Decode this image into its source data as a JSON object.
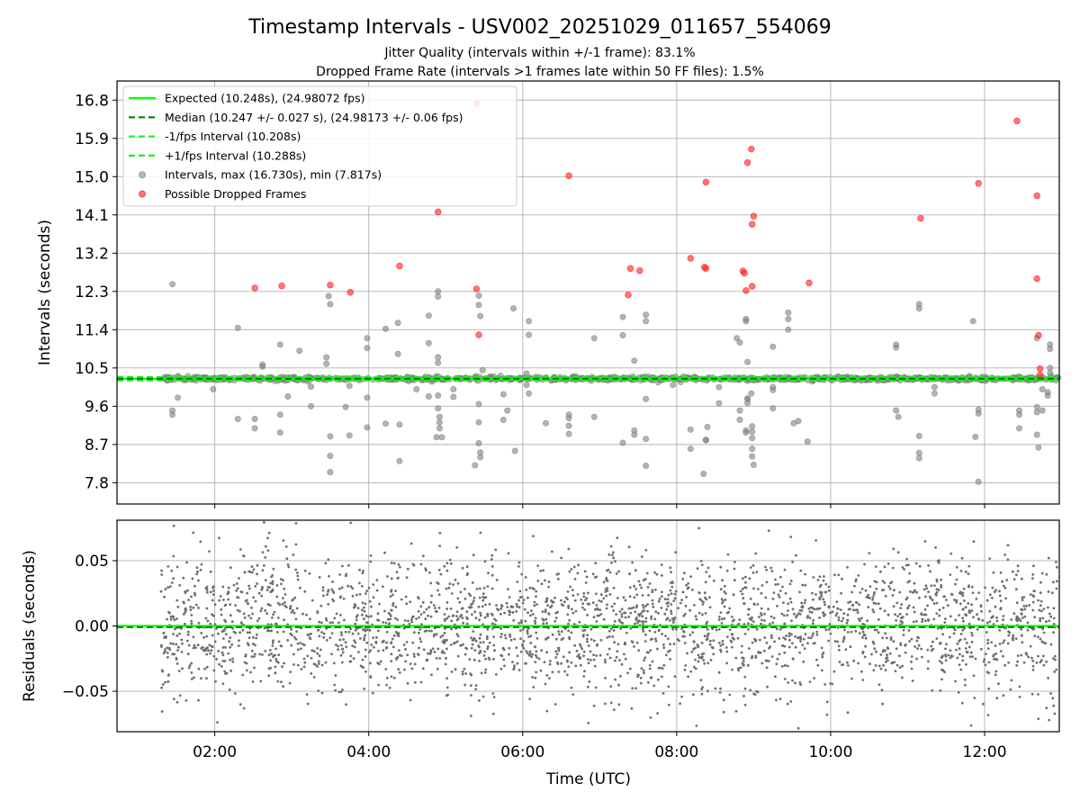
{
  "chart_data": {
    "type": "scatter",
    "title": "Timestamp Intervals - USV002_20251029_011657_554069",
    "subtitle_lines": [
      "Jitter Quality (intervals within +/-1 frame): 83.1%",
      "Dropped Frame Rate (intervals >1 frames late within 50 FF files): 1.5%"
    ],
    "xlabel": "Time (UTC)",
    "x_unit": "hours UTC",
    "xlim": [
      0.73,
      12.97
    ],
    "x_tick_labels": [
      "02:00",
      "04:00",
      "06:00",
      "08:00",
      "10:00",
      "12:00"
    ],
    "x_tick_values": [
      2,
      4,
      6,
      8,
      10,
      12
    ],
    "top": {
      "ylabel": "Intervals (seconds)",
      "ylim": [
        7.3,
        17.25
      ],
      "y_tick_values": [
        7.8,
        8.7,
        9.6,
        10.5,
        11.4,
        12.3,
        13.2,
        14.1,
        15.0,
        15.9,
        16.8
      ],
      "y_tick_labels": [
        "7.8",
        "8.7",
        "9.6",
        "10.5",
        "11.4",
        "12.3",
        "13.2",
        "14.1",
        "15.0",
        "15.9",
        "16.8"
      ],
      "expected": 10.248,
      "median": 10.247,
      "lower_interval": 10.208,
      "upper_interval": 10.288,
      "legend": [
        "Expected (10.248s), (24.98072 fps)",
        "Median (10.247 +/- 0.027 s), (24.98173 +/- 0.06 fps)",
        "-1/fps Interval (10.208s)",
        "+1/fps Interval (10.288s)",
        "Intervals, max (16.730s), min (7.817s)",
        "Possible Dropped Frames"
      ],
      "dropped_frames": [
        [
          2.52,
          12.38
        ],
        [
          2.87,
          12.43
        ],
        [
          3.5,
          12.45
        ],
        [
          3.76,
          12.28
        ],
        [
          4.4,
          12.9
        ],
        [
          4.9,
          14.17
        ],
        [
          5.4,
          16.73
        ],
        [
          5.4,
          12.36
        ],
        [
          5.43,
          11.28
        ],
        [
          6.6,
          15.02
        ],
        [
          7.4,
          12.84
        ],
        [
          7.52,
          12.79
        ],
        [
          7.37,
          12.22
        ],
        [
          8.18,
          13.08
        ],
        [
          8.38,
          14.87
        ],
        [
          8.36,
          12.87
        ],
        [
          8.38,
          12.84
        ],
        [
          8.86,
          12.78
        ],
        [
          8.88,
          12.73
        ],
        [
          8.92,
          15.33
        ],
        [
          8.97,
          15.65
        ],
        [
          9.0,
          14.07
        ],
        [
          8.98,
          13.88
        ],
        [
          8.98,
          12.42
        ],
        [
          8.9,
          12.32
        ],
        [
          9.72,
          12.5
        ],
        [
          11.17,
          14.02
        ],
        [
          11.92,
          14.84
        ],
        [
          12.42,
          16.31
        ],
        [
          12.68,
          14.55
        ],
        [
          12.68,
          12.6
        ],
        [
          12.7,
          11.27
        ],
        [
          12.72,
          10.48
        ],
        [
          12.72,
          10.33
        ]
      ],
      "outlier_intervals": [
        [
          1.45,
          12.47
        ],
        [
          1.45,
          9.4
        ],
        [
          1.45,
          9.5
        ],
        [
          1.52,
          9.8
        ],
        [
          1.98,
          10.0
        ],
        [
          2.3,
          11.44
        ],
        [
          2.3,
          9.3
        ],
        [
          2.52,
          9.3
        ],
        [
          2.52,
          9.08
        ],
        [
          2.62,
          10.58
        ],
        [
          2.62,
          10.53
        ],
        [
          2.85,
          11.05
        ],
        [
          2.85,
          9.4
        ],
        [
          2.85,
          8.98
        ],
        [
          2.95,
          9.83
        ],
        [
          3.1,
          10.9
        ],
        [
          3.25,
          10.06
        ],
        [
          3.25,
          9.6
        ],
        [
          3.45,
          10.75
        ],
        [
          3.45,
          10.6
        ],
        [
          3.48,
          12.19
        ],
        [
          3.5,
          12.0
        ],
        [
          3.5,
          8.89
        ],
        [
          3.5,
          8.43
        ],
        [
          3.5,
          8.05
        ],
        [
          3.7,
          9.58
        ],
        [
          3.75,
          10.08
        ],
        [
          3.75,
          8.91
        ],
        [
          3.98,
          11.2
        ],
        [
          3.98,
          10.97
        ],
        [
          3.98,
          9.8
        ],
        [
          3.98,
          9.1
        ],
        [
          4.22,
          9.19
        ],
        [
          4.22,
          11.42
        ],
        [
          4.38,
          11.56
        ],
        [
          4.38,
          10.83
        ],
        [
          4.4,
          9.17
        ],
        [
          4.4,
          8.31
        ],
        [
          4.62,
          10.0
        ],
        [
          4.78,
          11.73
        ],
        [
          4.78,
          11.08
        ],
        [
          4.78,
          9.83
        ],
        [
          4.82,
          10.18
        ],
        [
          4.9,
          12.3
        ],
        [
          4.9,
          12.18
        ],
        [
          4.9,
          10.75
        ],
        [
          4.9,
          10.62
        ],
        [
          4.9,
          9.85
        ],
        [
          4.9,
          9.55
        ],
        [
          4.92,
          9.35
        ],
        [
          4.92,
          9.22
        ],
        [
          4.92,
          9.08
        ],
        [
          4.95,
          8.87
        ],
        [
          4.88,
          8.87
        ],
        [
          5.1,
          10.0
        ],
        [
          5.1,
          9.82
        ],
        [
          5.43,
          12.2
        ],
        [
          5.43,
          11.98
        ],
        [
          5.45,
          11.72
        ],
        [
          5.43,
          9.65
        ],
        [
          5.43,
          9.22
        ],
        [
          5.43,
          8.73
        ],
        [
          5.45,
          8.51
        ],
        [
          5.45,
          8.4
        ],
        [
          5.38,
          8.21
        ],
        [
          5.48,
          10.45
        ],
        [
          5.75,
          9.28
        ],
        [
          5.75,
          9.88
        ],
        [
          5.8,
          9.5
        ],
        [
          5.88,
          11.9
        ],
        [
          5.9,
          8.55
        ],
        [
          6.05,
          10.1
        ],
        [
          6.05,
          10.37
        ],
        [
          6.08,
          11.6
        ],
        [
          6.08,
          11.28
        ],
        [
          6.08,
          9.9
        ],
        [
          6.3,
          9.2
        ],
        [
          6.6,
          9.4
        ],
        [
          6.6,
          9.32
        ],
        [
          6.6,
          9.14
        ],
        [
          6.6,
          8.95
        ],
        [
          6.93,
          11.2
        ],
        [
          6.93,
          9.35
        ],
        [
          7.3,
          11.27
        ],
        [
          7.3,
          11.7
        ],
        [
          7.3,
          8.74
        ],
        [
          7.45,
          10.67
        ],
        [
          7.45,
          9.03
        ],
        [
          7.45,
          8.93
        ],
        [
          7.6,
          11.6
        ],
        [
          7.6,
          11.75
        ],
        [
          7.6,
          9.77
        ],
        [
          7.6,
          8.83
        ],
        [
          7.6,
          8.2
        ],
        [
          7.95,
          10.1
        ],
        [
          8.18,
          9.05
        ],
        [
          8.18,
          8.6
        ],
        [
          8.38,
          8.81
        ],
        [
          8.38,
          8.8
        ],
        [
          8.35,
          8.01
        ],
        [
          8.4,
          9.11
        ],
        [
          8.55,
          10.05
        ],
        [
          8.55,
          9.67
        ],
        [
          8.78,
          11.2
        ],
        [
          8.82,
          11.1
        ],
        [
          8.82,
          9.5
        ],
        [
          8.82,
          9.28
        ],
        [
          8.9,
          11.65
        ],
        [
          8.9,
          11.6
        ],
        [
          8.9,
          9.03
        ],
        [
          8.9,
          8.98
        ],
        [
          8.92,
          9.77
        ],
        [
          8.92,
          9.78
        ],
        [
          8.92,
          9.68
        ],
        [
          8.92,
          10.64
        ],
        [
          8.97,
          9.9
        ],
        [
          8.98,
          9.13
        ],
        [
          8.98,
          9.0
        ],
        [
          8.98,
          8.85
        ],
        [
          8.98,
          8.6
        ],
        [
          8.98,
          8.42
        ],
        [
          9.0,
          8.22
        ],
        [
          9.25,
          11.0
        ],
        [
          9.25,
          10.05
        ],
        [
          9.25,
          9.98
        ],
        [
          9.25,
          9.55
        ],
        [
          9.45,
          11.8
        ],
        [
          9.45,
          11.65
        ],
        [
          9.45,
          11.4
        ],
        [
          9.52,
          9.2
        ],
        [
          9.58,
          9.25
        ],
        [
          9.7,
          8.77
        ],
        [
          10.1,
          10.3
        ],
        [
          10.85,
          10.98
        ],
        [
          10.85,
          11.05
        ],
        [
          10.85,
          9.5
        ],
        [
          10.88,
          9.35
        ],
        [
          11.15,
          11.9
        ],
        [
          11.15,
          12.0
        ],
        [
          11.15,
          8.9
        ],
        [
          11.15,
          8.5
        ],
        [
          11.15,
          8.38
        ],
        [
          11.35,
          10.05
        ],
        [
          11.35,
          9.9
        ],
        [
          11.85,
          11.6
        ],
        [
          11.88,
          8.88
        ],
        [
          11.92,
          7.82
        ],
        [
          11.92,
          9.52
        ],
        [
          11.92,
          9.43
        ],
        [
          12.45,
          9.5
        ],
        [
          12.45,
          9.4
        ],
        [
          12.45,
          9.08
        ],
        [
          12.68,
          11.2
        ],
        [
          12.68,
          9.58
        ],
        [
          12.68,
          9.46
        ],
        [
          12.68,
          8.93
        ],
        [
          12.7,
          8.63
        ],
        [
          12.75,
          9.5
        ],
        [
          12.75,
          10.0
        ],
        [
          12.82,
          9.93
        ],
        [
          12.82,
          9.85
        ],
        [
          12.85,
          10.95
        ],
        [
          12.85,
          11.05
        ],
        [
          12.85,
          10.5
        ],
        [
          12.85,
          10.38
        ]
      ]
    },
    "bottom": {
      "ylabel": "Residuals (seconds)",
      "ylim": [
        -0.081,
        0.081
      ],
      "y_tick_values": [
        -0.05,
        0.0,
        0.05
      ],
      "y_tick_labels": [
        "−0.05",
        "0.00",
        "0.05"
      ],
      "residual_point_count": 2800,
      "residual_std": 0.027,
      "residual_x_range": [
        1.3,
        12.95
      ]
    },
    "colors": {
      "expected": "#00ff00",
      "median": "#007f00",
      "interval": "#22ee22",
      "points": "#808080",
      "dropped": "#ff1a1a",
      "residual": "#6e6e6e",
      "grid": "#b0b0b0"
    }
  }
}
